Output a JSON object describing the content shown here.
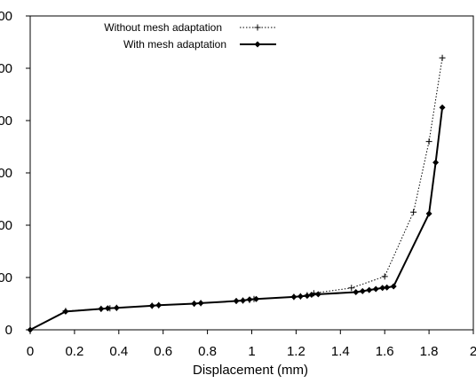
{
  "chart_data": {
    "type": "line",
    "title": "",
    "xlabel": "Displacement (mm)",
    "ylabel": "",
    "xlim": [
      0,
      2
    ],
    "ylim": [
      0,
      600
    ],
    "x_ticks": [
      "0",
      "0.2",
      "0.4",
      "0.6",
      "0.8",
      "1",
      "1.2",
      "1.4",
      "1.6",
      "1.8",
      "2"
    ],
    "y_ticks": [
      "0",
      "00",
      "00",
      "00",
      "00",
      "00",
      "00"
    ],
    "grid": false,
    "legend_position": "top-center",
    "series": [
      {
        "name": "Without mesh adaptation",
        "line_style": "dotted",
        "marker": "plus",
        "color": "#000000",
        "x": [
          0,
          0.16,
          0.32,
          0.36,
          0.39,
          0.55,
          0.58,
          0.74,
          0.77,
          0.93,
          0.96,
          0.99,
          1.01,
          1.19,
          1.22,
          1.25,
          1.28,
          1.45,
          1.6,
          1.73,
          1.8,
          1.86
        ],
        "y": [
          0,
          36,
          40,
          41,
          42,
          46,
          47,
          50,
          51,
          55,
          56,
          57,
          59,
          63,
          64,
          66,
          70,
          80,
          102,
          225,
          360,
          520
        ]
      },
      {
        "name": "With mesh adaptation",
        "line_style": "solid",
        "marker": "diamond",
        "color": "#000000",
        "x": [
          0,
          0.16,
          0.32,
          0.35,
          0.39,
          0.55,
          0.58,
          0.74,
          0.77,
          0.93,
          0.96,
          0.99,
          1.02,
          1.19,
          1.22,
          1.25,
          1.27,
          1.3,
          1.47,
          1.5,
          1.53,
          1.56,
          1.59,
          1.61,
          1.64,
          1.8,
          1.83,
          1.86
        ],
        "y": [
          0,
          35,
          40,
          41,
          42,
          46,
          47,
          50,
          51,
          55,
          56,
          58,
          59,
          63,
          64,
          65,
          67,
          68,
          72,
          74,
          76,
          78,
          80,
          81,
          83,
          222,
          320,
          425
        ]
      }
    ]
  }
}
